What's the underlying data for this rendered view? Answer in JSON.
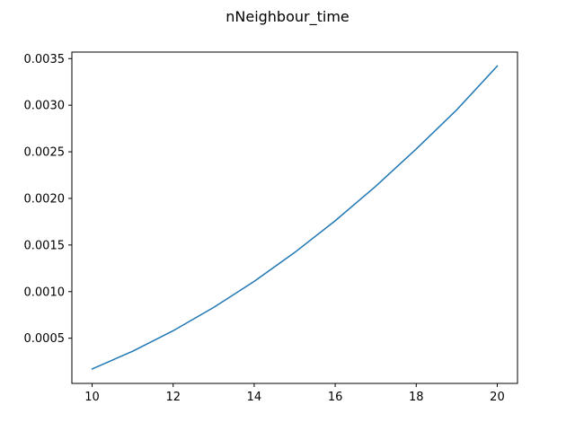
{
  "chart_data": {
    "type": "line",
    "title": "nNeighbour_time",
    "xlabel": "",
    "ylabel": "",
    "x": [
      10,
      11,
      12,
      13,
      14,
      15,
      16,
      17,
      18,
      19,
      20
    ],
    "series": [
      {
        "values": [
          0.00017,
          0.00036,
          0.00058,
          0.00083,
          0.00111,
          0.00142,
          0.00176,
          0.00213,
          0.00253,
          0.00295,
          0.00342
        ],
        "color": "#1f77b4"
      }
    ],
    "xlim": [
      9.5,
      20.5
    ],
    "ylim": [
      1.5e-05,
      0.00357
    ],
    "xticks": [
      10,
      12,
      14,
      16,
      18,
      20
    ],
    "xtick_labels": [
      "10",
      "12",
      "14",
      "16",
      "18",
      "20"
    ],
    "yticks": [
      0.0005,
      0.001,
      0.0015,
      0.002,
      0.0025,
      0.003,
      0.0035
    ],
    "ytick_labels": [
      "0.0005",
      "0.0010",
      "0.0015",
      "0.0020",
      "0.0025",
      "0.0030",
      "0.0035"
    ],
    "grid": false,
    "legend": "none"
  }
}
